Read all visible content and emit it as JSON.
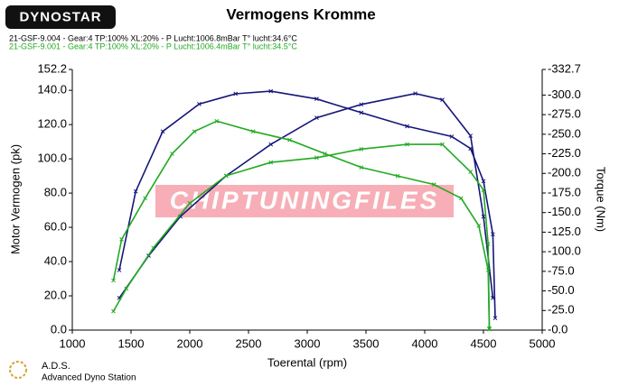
{
  "logo": "DYNOSTAR",
  "footer": {
    "brand": "A.D.S.",
    "subtitle": "Advanced Dyno Station"
  },
  "watermark": "CHIPTUNINGFILES",
  "chart_data": {
    "type": "line",
    "title": "Vermogens Kromme",
    "x_label": "Toerental (rpm)",
    "y_label": "Motor Vermogen (pk)",
    "y2_label": "Torque (Nm)",
    "legend": [
      {
        "text": "21-GSF-9.004 - Gear:4 TP:100% XL:20%   - P Lucht:1006.8mBar T° lucht:34.6°C",
        "color": "#000000"
      },
      {
        "text": "21-GSF-9.001 - Gear:4 TP:100% XL:20%   - P Lucht:1006.4mBar T° lucht:34.5°C",
        "color": "#22aa22"
      }
    ],
    "xlim": [
      1000,
      5000
    ],
    "xticks": [
      1000,
      1500,
      2000,
      2500,
      3000,
      3500,
      4000,
      4500,
      5000
    ],
    "ylim": [
      0,
      152.2
    ],
    "yticks": [
      {
        "value": 0,
        "label": "0.0"
      },
      {
        "value": 20,
        "label": "20.0"
      },
      {
        "value": 40,
        "label": "40.0"
      },
      {
        "value": 60,
        "label": "60.0"
      },
      {
        "value": 80,
        "label": "80.0"
      },
      {
        "value": 100,
        "label": "100.0"
      },
      {
        "value": 120,
        "label": "120.0"
      },
      {
        "value": 140,
        "label": "140.0"
      },
      152.2
    ],
    "y2lim": [
      0,
      -332.7
    ],
    "y2ticks": [
      {
        "value": 0,
        "label": "-0.0"
      },
      {
        "value": -25,
        "label": "-25.0"
      },
      {
        "value": -50,
        "label": "-50.0"
      },
      {
        "value": -75,
        "label": "-75.0"
      },
      {
        "value": -100,
        "label": "-100.0"
      },
      {
        "value": -125,
        "label": "-125.0"
      },
      {
        "value": -150,
        "label": "-150.0"
      },
      {
        "value": -175,
        "label": "-175.0"
      },
      {
        "value": -200,
        "label": "-200.0"
      },
      {
        "value": -225,
        "label": "-225.0"
      },
      {
        "value": -250,
        "label": "-250.0"
      },
      {
        "value": -275,
        "label": "-275.0"
      },
      {
        "value": -300,
        "label": "-300.0"
      },
      -332.7
    ],
    "series": [
      {
        "color": "#16167a",
        "axis": "y",
        "x": [
          1400,
          1540,
          1770,
          2080,
          2390,
          2690,
          3080,
          3460,
          3850,
          4230,
          4390,
          4500,
          4580,
          4600
        ],
        "values": [
          35,
          81,
          116,
          132,
          138,
          139.5,
          135,
          127,
          119,
          113,
          106,
          87,
          56,
          7
        ]
      },
      {
        "color": "#16167a",
        "axis": "y2",
        "x": [
          1400,
          1650,
          1920,
          2310,
          2690,
          3080,
          3460,
          3920,
          4150,
          4390,
          4500,
          4580
        ],
        "values": [
          -41,
          -95,
          -145,
          -197,
          -237,
          -271,
          -288,
          -302,
          -294,
          -248,
          -145,
          -41
        ]
      },
      {
        "color": "#22aa22",
        "axis": "y",
        "x": [
          1350,
          1420,
          1620,
          1850,
          2040,
          2230,
          2540,
          2850,
          3150,
          3460,
          3770,
          4080,
          4310,
          4460,
          4540,
          4550
        ],
        "values": [
          29,
          53,
          77,
          103,
          116,
          122,
          116,
          111,
          103,
          95,
          90,
          85,
          77,
          61,
          35,
          1
        ]
      },
      {
        "color": "#22aa22",
        "axis": "y2",
        "x": [
          1350,
          1460,
          1690,
          2000,
          2310,
          2690,
          3080,
          3460,
          3850,
          4150,
          4390,
          4500,
          4540,
          4550
        ],
        "values": [
          -24,
          -53,
          -105,
          -162,
          -197,
          -214,
          -220,
          -231,
          -237,
          -237,
          -202,
          -179,
          -110,
          -1
        ]
      }
    ]
  }
}
